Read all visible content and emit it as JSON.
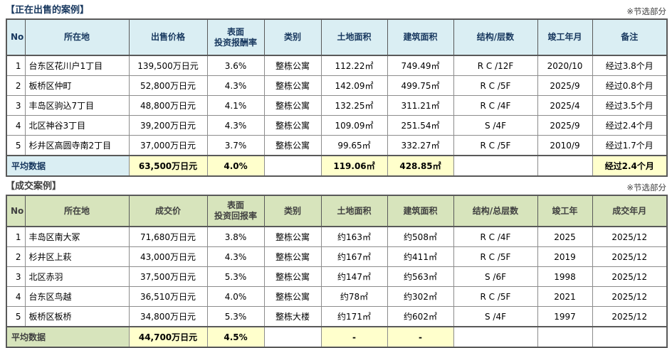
{
  "colors": {
    "table1_header_bg": "#daeef3",
    "table1_title_text": "#17375e",
    "table2_header_bg": "#d7e4bc",
    "table2_title_text": "#404040",
    "highlight_bg": "#ffffcc",
    "outer_border": "#595959",
    "inner_border": "#8c8c8c"
  },
  "table1": {
    "title": "【正在出售的案例】",
    "note": "※节选部分",
    "headers": [
      "No",
      "所在地",
      "出售价格",
      "表面\n投资报酬率",
      "类别",
      "土地面积",
      "建筑面积",
      "结构/层数",
      "竣工年月",
      "备注"
    ],
    "rows": [
      {
        "no": "1",
        "location": "台东区花川户1丁目",
        "price": "139,500万日元",
        "yield": "3.6%",
        "type": "整栋公寓",
        "land": "112.22㎡",
        "building": "749.49㎡",
        "structure": "R C  /12F",
        "completed": "2020/10",
        "note": "经过3.8个月"
      },
      {
        "no": "2",
        "location": "板桥区仲町",
        "price": "52,800万日元",
        "yield": "4.3%",
        "type": "整栋公寓",
        "land": "142.09㎡",
        "building": "499.75㎡",
        "structure": "R C  /5F",
        "completed": "2025/9",
        "note": "经过0.8个月"
      },
      {
        "no": "3",
        "location": "丰岛区驹込7丁目",
        "price": "48,800万日元",
        "yield": "4.1%",
        "type": "整栋公寓",
        "land": "132.25㎡",
        "building": "311.21㎡",
        "structure": "R C  /4F",
        "completed": "2025/4",
        "note": "经过3.5个月"
      },
      {
        "no": "4",
        "location": "北区神谷3丁目",
        "price": "39,200万日元",
        "yield": "4.3%",
        "type": "整栋公寓",
        "land": "109.09㎡",
        "building": "251.54㎡",
        "structure": "S  /4F",
        "completed": "2025/9",
        "note": "经过2.4个月"
      },
      {
        "no": "5",
        "location": "杉井区高圆寺南2丁目",
        "price": "37,000万日元",
        "yield": "3.7%",
        "type": "整栋公寓",
        "land": "99.65㎡",
        "building": "332.27㎡",
        "structure": "R C  /5F",
        "completed": "2010/9",
        "note": "经过1.7个月"
      }
    ],
    "average": {
      "label": "平均数据",
      "price": "63,500万日元",
      "yield": "4.0%",
      "land": "119.06㎡",
      "building": "428.85㎡",
      "note": "经过2.4个月"
    }
  },
  "table2": {
    "title": "【成交案例】",
    "note": "※节选部分",
    "headers": [
      "No",
      "所在地",
      "成交价",
      "表面\n投资回报率",
      "类别",
      "土地面积",
      "建筑面积",
      "结构/总层数",
      "竣工年",
      "成交年月"
    ],
    "rows": [
      {
        "no": "1",
        "location": "丰岛区南大冢",
        "price": "71,680万日元",
        "yield": "3.8%",
        "type": "整栋公寓",
        "land": "约163㎡",
        "building": "约508㎡",
        "structure": "R C  /4F",
        "completed": "2025",
        "deal": "2025/12"
      },
      {
        "no": "2",
        "location": "杉井区上萩",
        "price": "43,000万日元",
        "yield": "4.3%",
        "type": "整栋公寓",
        "land": "约167㎡",
        "building": "约411㎡",
        "structure": "R C  /5F",
        "completed": "2019",
        "deal": "2025/12"
      },
      {
        "no": "3",
        "location": "北区赤羽",
        "price": "37,500万日元",
        "yield": "5.3%",
        "type": "整栋公寓",
        "land": "约147㎡",
        "building": "约563㎡",
        "structure": "S  /6F",
        "completed": "1998",
        "deal": "2025/12"
      },
      {
        "no": "4",
        "location": "台东区鸟越",
        "price": "36,510万日元",
        "yield": "4.0%",
        "type": "整栋公寓",
        "land": "约78㎡",
        "building": "约302㎡",
        "structure": "R C  /5F",
        "completed": "2021",
        "deal": "2025/12"
      },
      {
        "no": "5",
        "location": "板桥区板桥",
        "price": "34,800万日元",
        "yield": "5.3%",
        "type": "整栋大楼",
        "land": "约171㎡",
        "building": "约602㎡",
        "structure": "S  /4F",
        "completed": "1997",
        "deal": "2025/12"
      }
    ],
    "average": {
      "label": "平均数据",
      "price": "44,700万日元",
      "yield": "4.5%",
      "land": "-",
      "building": "-"
    }
  }
}
